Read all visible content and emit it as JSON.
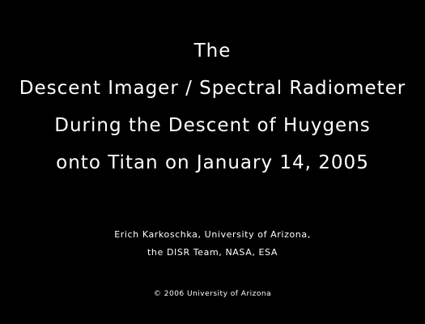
{
  "title": {
    "lines": [
      "The",
      "Descent Imager / Spectral Radiometer",
      "During the Descent of Huygens",
      "onto Titan on January 14, 2005"
    ]
  },
  "credits": {
    "lines": [
      "Erich Karkoschka, University of Arizona,",
      "the DISR Team, NASA, ESA"
    ]
  },
  "copyright": "©  2006   University of Arizona",
  "colors": {
    "background": "#000000",
    "text": "#ffffff"
  }
}
